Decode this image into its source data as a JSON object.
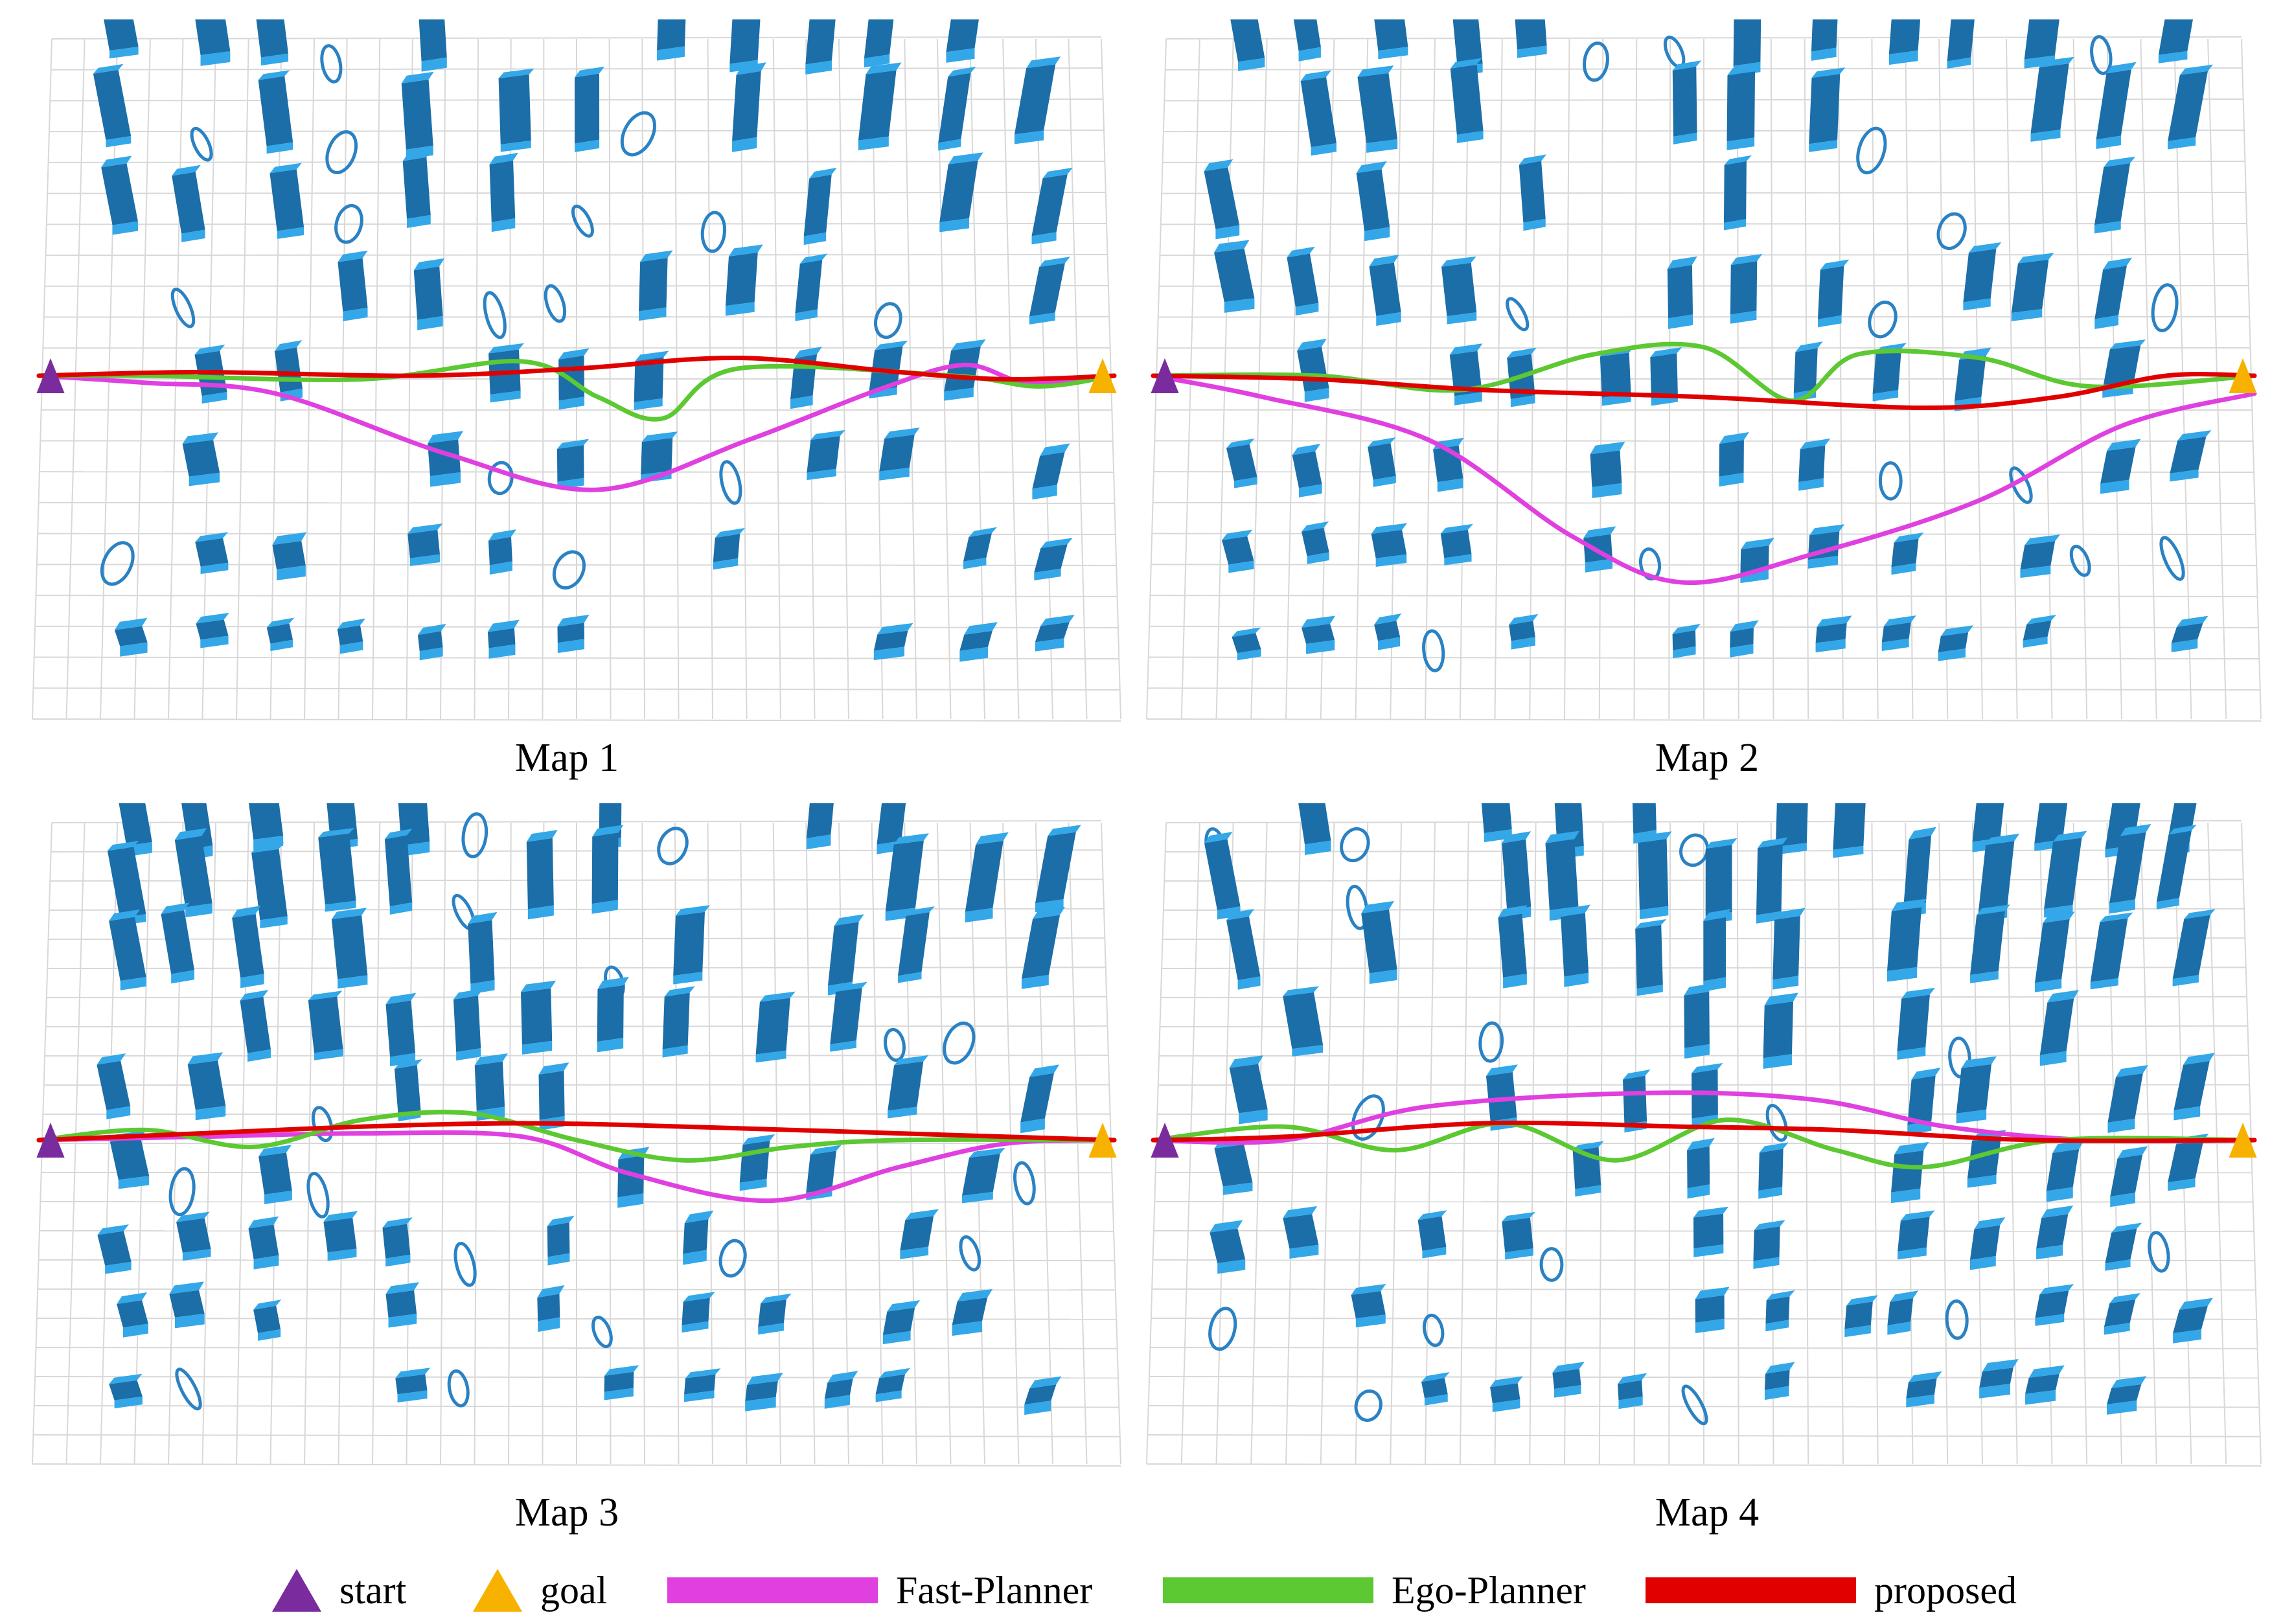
{
  "maps": [
    {
      "caption": "Map 1",
      "seed": 11,
      "cols": 13,
      "rows": 8,
      "paths": {
        "fast": [
          [
            0,
            0
          ],
          [
            0.1,
            0.02
          ],
          [
            0.22,
            0.05
          ],
          [
            0.38,
            0.22
          ],
          [
            0.52,
            0.32
          ],
          [
            0.66,
            0.18
          ],
          [
            0.78,
            0.04
          ],
          [
            0.86,
            -0.03
          ],
          [
            0.92,
            0.02
          ],
          [
            1,
            0
          ]
        ],
        "ego": [
          [
            0,
            0
          ],
          [
            0.1,
            0.0
          ],
          [
            0.3,
            0.01
          ],
          [
            0.45,
            -0.04
          ],
          [
            0.52,
            0.06
          ],
          [
            0.58,
            0.12
          ],
          [
            0.65,
            -0.02
          ],
          [
            0.85,
            0.0
          ],
          [
            0.93,
            0.03
          ],
          [
            1,
            0
          ]
        ],
        "proposed": [
          [
            0,
            0
          ],
          [
            0.15,
            -0.01
          ],
          [
            0.35,
            0.0
          ],
          [
            0.5,
            -0.02
          ],
          [
            0.65,
            -0.05
          ],
          [
            0.8,
            -0.01
          ],
          [
            0.9,
            0.01
          ],
          [
            1,
            0
          ]
        ]
      }
    },
    {
      "caption": "Map 2",
      "seed": 23,
      "cols": 14,
      "rows": 8,
      "paths": {
        "fast": [
          [
            0,
            0
          ],
          [
            0.1,
            0.06
          ],
          [
            0.25,
            0.18
          ],
          [
            0.38,
            0.45
          ],
          [
            0.48,
            0.58
          ],
          [
            0.6,
            0.5
          ],
          [
            0.75,
            0.35
          ],
          [
            0.88,
            0.14
          ],
          [
            1,
            0.05
          ]
        ],
        "ego": [
          [
            0,
            0
          ],
          [
            0.15,
            0.0
          ],
          [
            0.28,
            0.04
          ],
          [
            0.4,
            -0.06
          ],
          [
            0.5,
            -0.08
          ],
          [
            0.58,
            0.07
          ],
          [
            0.64,
            -0.06
          ],
          [
            0.75,
            -0.05
          ],
          [
            0.85,
            0.03
          ],
          [
            1,
            0
          ]
        ],
        "proposed": [
          [
            0,
            0
          ],
          [
            0.15,
            0.01
          ],
          [
            0.3,
            0.04
          ],
          [
            0.5,
            0.06
          ],
          [
            0.7,
            0.09
          ],
          [
            0.82,
            0.06
          ],
          [
            0.92,
            0.0
          ],
          [
            1,
            0
          ]
        ]
      }
    },
    {
      "caption": "Map 3",
      "seed": 37,
      "cols": 14,
      "rows": 9,
      "paths": {
        "fast": [
          [
            0,
            0
          ],
          [
            0.15,
            -0.01
          ],
          [
            0.3,
            -0.02
          ],
          [
            0.45,
            -0.01
          ],
          [
            0.55,
            0.1
          ],
          [
            0.68,
            0.18
          ],
          [
            0.8,
            0.08
          ],
          [
            0.9,
            0.01
          ],
          [
            1,
            0
          ]
        ],
        "ego": [
          [
            0,
            0
          ],
          [
            0.1,
            -0.03
          ],
          [
            0.2,
            0.02
          ],
          [
            0.3,
            -0.06
          ],
          [
            0.4,
            -0.08
          ],
          [
            0.5,
            0.0
          ],
          [
            0.6,
            0.06
          ],
          [
            0.7,
            0.02
          ],
          [
            0.8,
            0.0
          ],
          [
            1,
            0
          ]
        ],
        "proposed": [
          [
            0,
            0
          ],
          [
            0.15,
            -0.02
          ],
          [
            0.3,
            -0.04
          ],
          [
            0.45,
            -0.05
          ],
          [
            0.6,
            -0.04
          ],
          [
            0.8,
            -0.02
          ],
          [
            1,
            0
          ]
        ]
      }
    },
    {
      "caption": "Map 4",
      "seed": 51,
      "cols": 15,
      "rows": 9,
      "paths": {
        "fast": [
          [
            0,
            0
          ],
          [
            0.12,
            0.0
          ],
          [
            0.25,
            -0.1
          ],
          [
            0.45,
            -0.14
          ],
          [
            0.6,
            -0.12
          ],
          [
            0.72,
            -0.04
          ],
          [
            0.85,
            0.0
          ],
          [
            1,
            0
          ]
        ],
        "ego": [
          [
            0,
            0
          ],
          [
            0.12,
            -0.04
          ],
          [
            0.22,
            0.03
          ],
          [
            0.32,
            -0.05
          ],
          [
            0.42,
            0.06
          ],
          [
            0.52,
            -0.06
          ],
          [
            0.62,
            0.03
          ],
          [
            0.7,
            0.08
          ],
          [
            0.82,
            0.0
          ],
          [
            1,
            0
          ]
        ],
        "proposed": [
          [
            0,
            0
          ],
          [
            0.12,
            -0.01
          ],
          [
            0.3,
            -0.05
          ],
          [
            0.48,
            -0.04
          ],
          [
            0.62,
            -0.03
          ],
          [
            0.8,
            0.0
          ],
          [
            1,
            0
          ]
        ]
      }
    }
  ],
  "legend": {
    "start": "start",
    "goal": "goal",
    "fast": "Fast-Planner",
    "ego": "Ego-Planner",
    "proposed": "proposed"
  },
  "colors": {
    "start": "#7a2c9e",
    "goal": "#f7b200",
    "fast": "#e040e0",
    "ego": "#5cc832",
    "proposed": "#e00000",
    "obstacle_top": "#33a7e8",
    "obstacle_side": "#1b6ea8",
    "ring": "#2a82c4",
    "grid": "#d8d8d8"
  }
}
